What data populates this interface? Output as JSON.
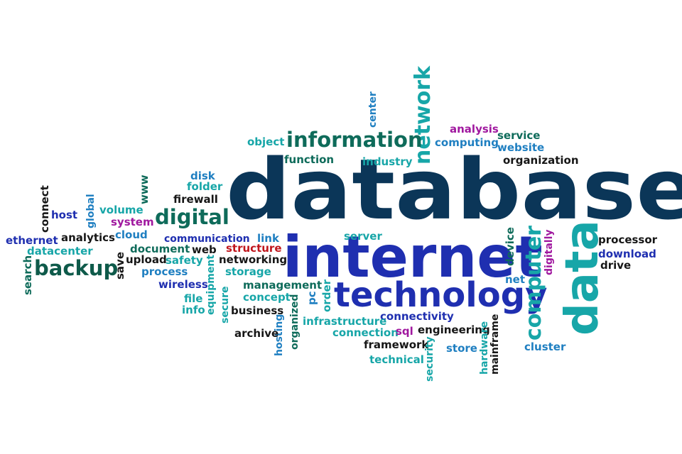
{
  "palette": {
    "navy": "#0b3658",
    "blue": "#1f2fb0",
    "teal": "#17a6a8",
    "skyblue": "#1f7fc1",
    "green": "#0e6b5a",
    "darkgreen": "#0e5a4a",
    "purple": "#a0189f",
    "red": "#c0161c",
    "black": "#161616",
    "darkblue": "#183a8c"
  },
  "words": [
    {
      "text": "database",
      "color": "navy"
    },
    {
      "text": "internet",
      "color": "blue"
    },
    {
      "text": "technology",
      "color": "blue"
    },
    {
      "text": "data",
      "color": "teal"
    },
    {
      "text": "computer",
      "color": "teal"
    },
    {
      "text": "network",
      "color": "teal"
    },
    {
      "text": "information",
      "color": "green"
    },
    {
      "text": "digital",
      "color": "green"
    },
    {
      "text": "backup",
      "color": "darkgreen"
    },
    {
      "text": "object",
      "color": "teal"
    },
    {
      "text": "function",
      "color": "green"
    },
    {
      "text": "industry",
      "color": "teal"
    },
    {
      "text": "center",
      "color": "skyblue"
    },
    {
      "text": "analysis",
      "color": "purple"
    },
    {
      "text": "service",
      "color": "green"
    },
    {
      "text": "computing",
      "color": "skyblue"
    },
    {
      "text": "website",
      "color": "skyblue"
    },
    {
      "text": "organization",
      "color": "black"
    },
    {
      "text": "disk",
      "color": "skyblue"
    },
    {
      "text": "folder",
      "color": "teal"
    },
    {
      "text": "www",
      "color": "green"
    },
    {
      "text": "firewall",
      "color": "black"
    },
    {
      "text": "connect",
      "color": "black"
    },
    {
      "text": "host",
      "color": "blue"
    },
    {
      "text": "global",
      "color": "skyblue"
    },
    {
      "text": "volume",
      "color": "teal"
    },
    {
      "text": "system",
      "color": "purple"
    },
    {
      "text": "ethernet",
      "color": "blue"
    },
    {
      "text": "analytics",
      "color": "black"
    },
    {
      "text": "cloud",
      "color": "skyblue"
    },
    {
      "text": "communication",
      "color": "blue"
    },
    {
      "text": "link",
      "color": "skyblue"
    },
    {
      "text": "server",
      "color": "teal"
    },
    {
      "text": "processor",
      "color": "black"
    },
    {
      "text": "datacenter",
      "color": "teal"
    },
    {
      "text": "document",
      "color": "green"
    },
    {
      "text": "web",
      "color": "black"
    },
    {
      "text": "structure",
      "color": "red"
    },
    {
      "text": "device",
      "color": "green"
    },
    {
      "text": "digitally",
      "color": "purple"
    },
    {
      "text": "download",
      "color": "blue"
    },
    {
      "text": "search",
      "color": "green"
    },
    {
      "text": "save",
      "color": "black"
    },
    {
      "text": "upload",
      "color": "black"
    },
    {
      "text": "safety",
      "color": "teal"
    },
    {
      "text": "networking",
      "color": "black"
    },
    {
      "text": "drive",
      "color": "black"
    },
    {
      "text": "process",
      "color": "skyblue"
    },
    {
      "text": "storage",
      "color": "teal"
    },
    {
      "text": "net",
      "color": "skyblue"
    },
    {
      "text": "wireless",
      "color": "blue"
    },
    {
      "text": "equipment",
      "color": "teal"
    },
    {
      "text": "management",
      "color": "green"
    },
    {
      "text": "file",
      "color": "teal"
    },
    {
      "text": "secure",
      "color": "teal"
    },
    {
      "text": "concept",
      "color": "teal"
    },
    {
      "text": "pc",
      "color": "skyblue"
    },
    {
      "text": "order",
      "color": "teal"
    },
    {
      "text": "info",
      "color": "teal"
    },
    {
      "text": "business",
      "color": "black"
    },
    {
      "text": "organized",
      "color": "green"
    },
    {
      "text": "hosting",
      "color": "skyblue"
    },
    {
      "text": "connectivity",
      "color": "blue"
    },
    {
      "text": "infrastructure",
      "color": "teal"
    },
    {
      "text": "archive",
      "color": "black"
    },
    {
      "text": "connection",
      "color": "teal"
    },
    {
      "text": "sql",
      "color": "purple"
    },
    {
      "text": "engineering",
      "color": "black"
    },
    {
      "text": "hardware",
      "color": "teal"
    },
    {
      "text": "mainframe",
      "color": "black"
    },
    {
      "text": "cluster",
      "color": "skyblue"
    },
    {
      "text": "framework",
      "color": "black"
    },
    {
      "text": "security",
      "color": "teal"
    },
    {
      "text": "store",
      "color": "skyblue"
    },
    {
      "text": "technical",
      "color": "teal"
    }
  ]
}
